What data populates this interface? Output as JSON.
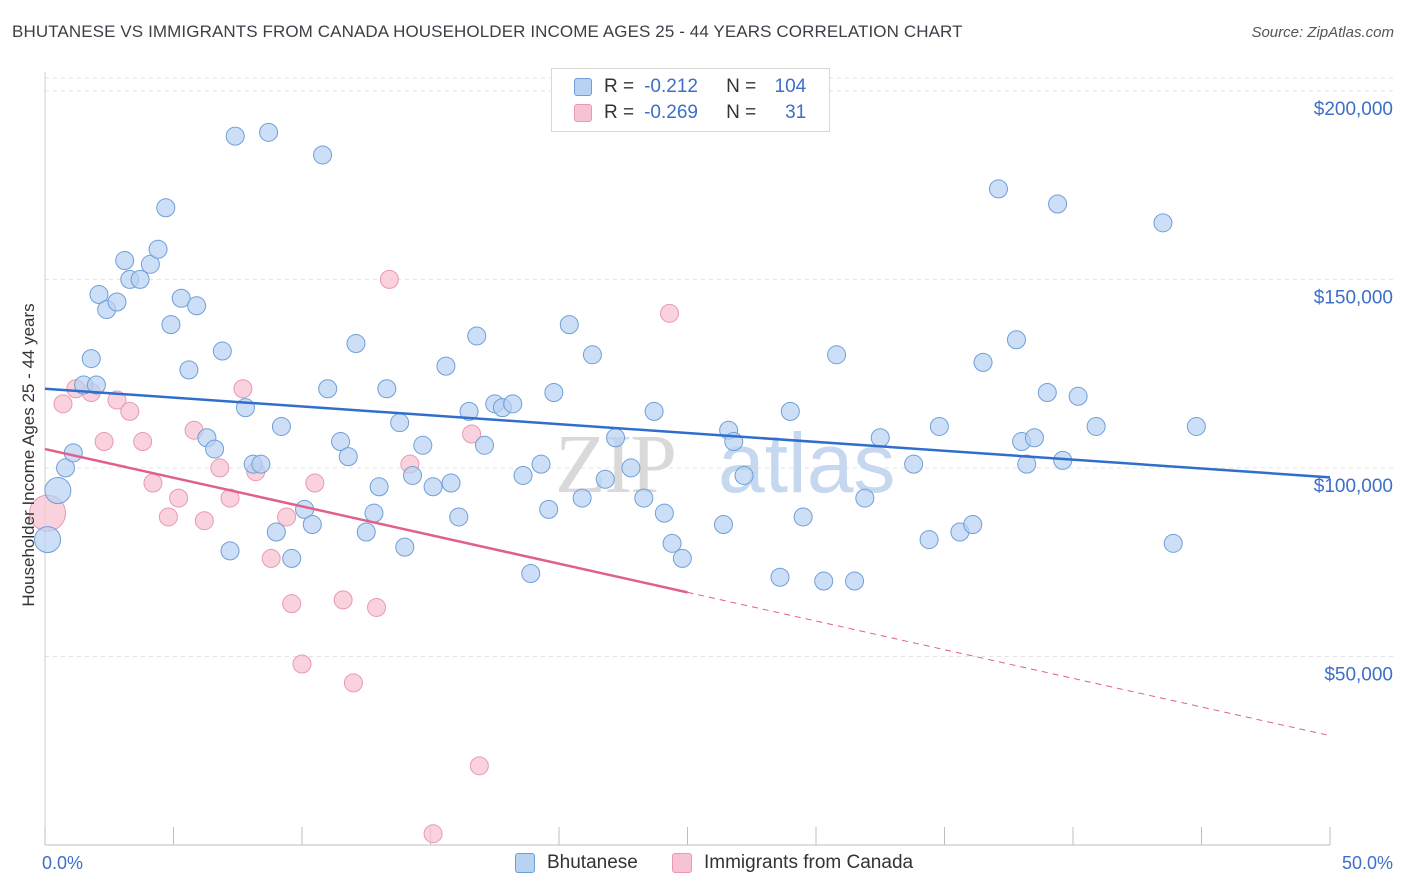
{
  "header": {
    "title": "BHUTANESE VS IMMIGRANTS FROM CANADA HOUSEHOLDER INCOME AGES 25 - 44 YEARS CORRELATION CHART",
    "source": "Source: ZipAtlas.com"
  },
  "legend": {
    "rows": [
      {
        "r_label": "R =",
        "r_value": "-0.212",
        "n_label": "N =",
        "n_value": "104"
      },
      {
        "r_label": "R =",
        "r_value": "-0.269",
        "n_label": "N =",
        "n_value": "31"
      }
    ]
  },
  "watermark": {
    "zip": "ZIP",
    "atlas": "atlas"
  },
  "colors": {
    "blue_fill": "#b8d2f2",
    "blue_stroke": "#6f9fd8",
    "blue_line": "#2f6fcb",
    "pink_fill": "#f7c3d3",
    "pink_stroke": "#e899b4",
    "pink_line": "#e0608a",
    "tick_text": "#3d6fc8",
    "grid": "#e2e2e2"
  },
  "chart_data": {
    "type": "scatter",
    "title": "BHUTANESE VS IMMIGRANTS FROM CANADA HOUSEHOLDER INCOME AGES 25 - 44 YEARS CORRELATION CHART",
    "xlabel": "",
    "ylabel": "Householder Income Ages 25 - 44 years",
    "xlim": [
      0,
      50
    ],
    "ylim": [
      0,
      205000
    ],
    "x_tick_labels": [
      "0.0%",
      "50.0%"
    ],
    "y_ticks": [
      50000,
      100000,
      150000,
      200000
    ],
    "y_tick_labels": [
      "$50,000",
      "$100,000",
      "$150,000",
      "$200,000"
    ],
    "grid": true,
    "legend_position": "top-center",
    "series": [
      {
        "name": "Bhutanese",
        "color": "#b8d2f2",
        "points": [
          [
            0.1,
            81000
          ],
          [
            0.5,
            94000
          ],
          [
            0.8,
            100000
          ],
          [
            1.1,
            104000
          ],
          [
            1.5,
            122000
          ],
          [
            1.8,
            129000
          ],
          [
            2.1,
            146000
          ],
          [
            2.4,
            142000
          ],
          [
            2.8,
            144000
          ],
          [
            3.1,
            155000
          ],
          [
            3.3,
            150000
          ],
          [
            3.7,
            150000
          ],
          [
            4.1,
            154000
          ],
          [
            4.4,
            158000
          ],
          [
            4.7,
            169000
          ],
          [
            4.9,
            138000
          ],
          [
            5.3,
            145000
          ],
          [
            5.6,
            126000
          ],
          [
            5.9,
            143000
          ],
          [
            6.3,
            108000
          ],
          [
            6.6,
            105000
          ],
          [
            6.9,
            131000
          ],
          [
            7.2,
            78000
          ],
          [
            7.4,
            188000
          ],
          [
            7.8,
            116000
          ],
          [
            8.1,
            101000
          ],
          [
            8.4,
            101000
          ],
          [
            8.7,
            189000
          ],
          [
            9.0,
            83000
          ],
          [
            9.2,
            111000
          ],
          [
            9.6,
            76000
          ],
          [
            10.1,
            89000
          ],
          [
            10.4,
            85000
          ],
          [
            10.8,
            183000
          ],
          [
            11.0,
            121000
          ],
          [
            11.5,
            107000
          ],
          [
            11.8,
            103000
          ],
          [
            12.1,
            133000
          ],
          [
            12.5,
            83000
          ],
          [
            12.8,
            88000
          ],
          [
            13.0,
            95000
          ],
          [
            13.3,
            121000
          ],
          [
            13.8,
            112000
          ],
          [
            14.0,
            79000
          ],
          [
            14.3,
            98000
          ],
          [
            14.7,
            106000
          ],
          [
            15.1,
            95000
          ],
          [
            15.6,
            127000
          ],
          [
            15.8,
            96000
          ],
          [
            16.1,
            87000
          ],
          [
            16.5,
            115000
          ],
          [
            16.8,
            135000
          ],
          [
            17.1,
            106000
          ],
          [
            17.5,
            117000
          ],
          [
            17.8,
            116000
          ],
          [
            18.2,
            117000
          ],
          [
            18.6,
            98000
          ],
          [
            18.9,
            72000
          ],
          [
            19.3,
            101000
          ],
          [
            19.6,
            89000
          ],
          [
            19.8,
            120000
          ],
          [
            20.4,
            138000
          ],
          [
            20.9,
            92000
          ],
          [
            21.3,
            130000
          ],
          [
            21.8,
            97000
          ],
          [
            22.2,
            108000
          ],
          [
            22.8,
            100000
          ],
          [
            23.3,
            92000
          ],
          [
            23.7,
            115000
          ],
          [
            24.1,
            88000
          ],
          [
            24.4,
            80000
          ],
          [
            24.8,
            76000
          ],
          [
            26.4,
            85000
          ],
          [
            26.6,
            110000
          ],
          [
            26.8,
            107000
          ],
          [
            27.2,
            98000
          ],
          [
            28.6,
            71000
          ],
          [
            29.0,
            115000
          ],
          [
            29.5,
            87000
          ],
          [
            30.3,
            70000
          ],
          [
            30.8,
            130000
          ],
          [
            31.5,
            70000
          ],
          [
            31.9,
            92000
          ],
          [
            32.5,
            108000
          ],
          [
            33.8,
            101000
          ],
          [
            34.4,
            81000
          ],
          [
            34.8,
            111000
          ],
          [
            35.6,
            83000
          ],
          [
            36.1,
            85000
          ],
          [
            36.5,
            128000
          ],
          [
            37.1,
            174000
          ],
          [
            37.8,
            134000
          ],
          [
            38.0,
            107000
          ],
          [
            38.2,
            101000
          ],
          [
            38.5,
            108000
          ],
          [
            39.0,
            120000
          ],
          [
            39.4,
            170000
          ],
          [
            39.6,
            102000
          ],
          [
            40.2,
            119000
          ],
          [
            40.9,
            111000
          ],
          [
            43.5,
            165000
          ],
          [
            43.9,
            80000
          ],
          [
            44.8,
            111000
          ],
          [
            2.0,
            122000
          ]
        ],
        "trend": {
          "x": [
            0,
            50
          ],
          "y": [
            121000,
            97500
          ]
        }
      },
      {
        "name": "Immigrants from Canada",
        "color": "#f7c3d3",
        "points": [
          [
            0.1,
            88000
          ],
          [
            0.7,
            117000
          ],
          [
            1.2,
            121000
          ],
          [
            1.8,
            120000
          ],
          [
            2.3,
            107000
          ],
          [
            2.8,
            118000
          ],
          [
            3.3,
            115000
          ],
          [
            3.8,
            107000
          ],
          [
            4.2,
            96000
          ],
          [
            4.8,
            87000
          ],
          [
            5.2,
            92000
          ],
          [
            5.8,
            110000
          ],
          [
            6.2,
            86000
          ],
          [
            6.8,
            100000
          ],
          [
            7.2,
            92000
          ],
          [
            7.7,
            121000
          ],
          [
            8.2,
            99000
          ],
          [
            8.8,
            76000
          ],
          [
            9.4,
            87000
          ],
          [
            9.6,
            64000
          ],
          [
            10.0,
            48000
          ],
          [
            10.5,
            96000
          ],
          [
            11.6,
            65000
          ],
          [
            12.0,
            43000
          ],
          [
            12.9,
            63000
          ],
          [
            13.4,
            150000
          ],
          [
            14.2,
            101000
          ],
          [
            15.1,
            3000
          ],
          [
            16.6,
            109000
          ],
          [
            16.9,
            21000
          ],
          [
            24.3,
            141000
          ]
        ],
        "trend_solid": {
          "x": [
            0,
            25
          ],
          "y": [
            105000,
            67000
          ]
        },
        "trend_dashed": {
          "x": [
            25,
            50
          ],
          "y": [
            67000,
            29000
          ]
        }
      }
    ]
  },
  "bottom_legend": {
    "items": [
      {
        "label": "Bhutanese"
      },
      {
        "label": "Immigrants from Canada"
      }
    ]
  }
}
